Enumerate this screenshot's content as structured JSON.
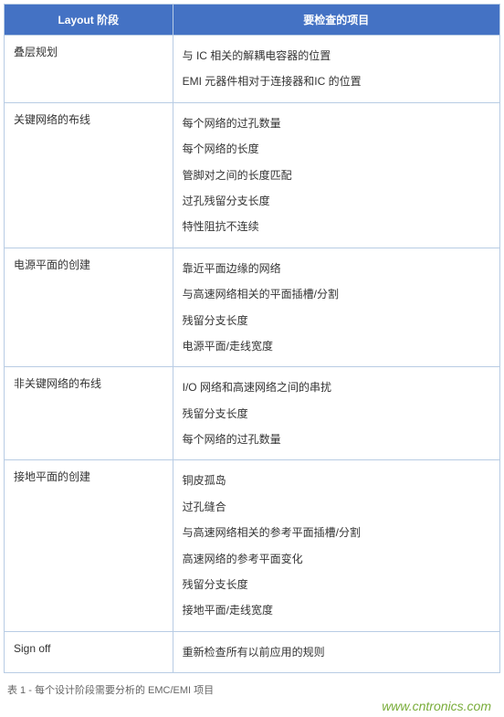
{
  "table": {
    "headers": [
      "Layout 阶段",
      "要检查的项目"
    ],
    "rows": [
      {
        "phase": "叠层规划",
        "items": [
          "与 IC 相关的解耦电容器的位置",
          "EMI 元器件相对于连接器和IC 的位置"
        ]
      },
      {
        "phase": "关键网络的布线",
        "items": [
          "每个网络的过孔数量",
          "每个网络的长度",
          "管脚对之间的长度匹配",
          "过孔残留分支长度",
          "特性阻抗不连续"
        ]
      },
      {
        "phase": "电源平面的创建",
        "items": [
          "靠近平面边缘的网络",
          "与高速网络相关的平面插槽/分割",
          "残留分支长度",
          "电源平面/走线宽度"
        ]
      },
      {
        "phase": "非关键网络的布线",
        "items": [
          "I/O 网络和高速网络之间的串扰",
          "残留分支长度",
          "每个网络的过孔数量"
        ]
      },
      {
        "phase": "接地平面的创建",
        "items": [
          "铜皮孤岛",
          "过孔缝合",
          "与高速网络相关的参考平面插槽/分割",
          "高速网络的参考平面变化",
          "残留分支长度",
          "接地平面/走线宽度"
        ]
      },
      {
        "phase": "Sign off",
        "items": [
          "重新检查所有以前应用的规则"
        ]
      }
    ],
    "header_bg": "#4472c4",
    "header_color": "#ffffff",
    "border_color": "#b8cce4",
    "cell_bg": "#ffffff"
  },
  "caption": "表 1 - 每个设计阶段需要分析的 EMC/EMI 项目",
  "watermark": "www.cntronics.com"
}
